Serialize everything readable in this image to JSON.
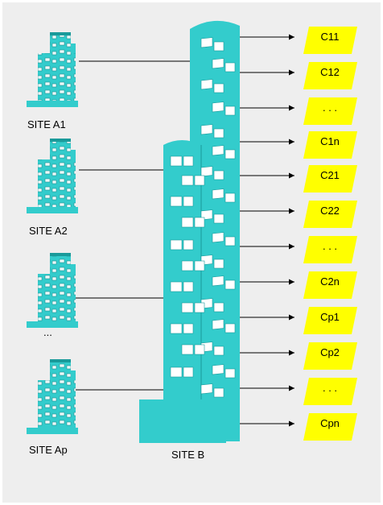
{
  "colors": {
    "background": "#eeeeee",
    "building": "#33cccc",
    "building_dark": "#1a9a9a",
    "target_fill": "#ffff00",
    "arrow": "#000000"
  },
  "sources": [
    {
      "id": "a1",
      "label": "SITE A1"
    },
    {
      "id": "a2",
      "label": "SITE A2"
    },
    {
      "id": "ellipsis",
      "label": "..."
    },
    {
      "id": "ap",
      "label": "SITE Ap"
    }
  ],
  "destination": {
    "label": "SITE B"
  },
  "targets": [
    "C11",
    "C12",
    ". . .",
    "C1n",
    "C21",
    "C22",
    ". . .",
    "C2n",
    "Cp1",
    "Cp2",
    ". . .",
    "Cpn"
  ],
  "icons": {
    "source_building": "office-tower-icon",
    "destination_building": "twin-tower-icon",
    "target_shape": "parallelogram"
  }
}
